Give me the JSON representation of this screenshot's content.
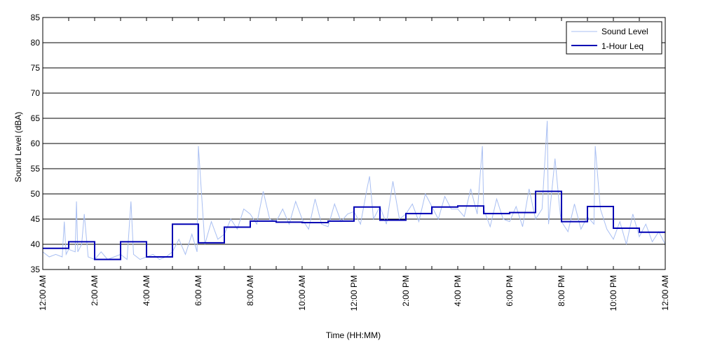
{
  "chart_data": {
    "type": "line",
    "title": "",
    "xlabel": "Time (HH:MM)",
    "ylabel": "Sound Level (dBA)",
    "xlim": [
      0,
      24
    ],
    "ylim": [
      35,
      85
    ],
    "yticks": [
      35,
      40,
      45,
      50,
      55,
      60,
      65,
      70,
      75,
      80,
      85
    ],
    "ytick_labels": [
      "35",
      "40",
      "45",
      "50",
      "55",
      "60",
      "65",
      "70",
      "75",
      "80",
      "85"
    ],
    "xticks": [
      0,
      2,
      4,
      6,
      8,
      10,
      12,
      14,
      16,
      18,
      20,
      22,
      24
    ],
    "xtick_labels": [
      "12:00 AM",
      "2:00 AM",
      "4:00 AM",
      "6:00 AM",
      "8:00 AM",
      "10:00 AM",
      "12:00 PM",
      "2:00 PM",
      "4:00 PM",
      "6:00 PM",
      "8:00 PM",
      "10:00 PM",
      "12:00 AM"
    ],
    "grid": "horizontal",
    "legend_position": "top-right",
    "series": [
      {
        "name": "Sound Level",
        "color": "#a9bff2",
        "style": "thin-line",
        "x": [
          0,
          0.25,
          0.5,
          0.75,
          0.83,
          0.9,
          1.0,
          1.25,
          1.3,
          1.35,
          1.5,
          1.6,
          1.75,
          2.0,
          2.25,
          2.5,
          2.75,
          3.0,
          3.25,
          3.4,
          3.5,
          3.75,
          4.0,
          4.25,
          4.5,
          4.75,
          5.0,
          5.25,
          5.5,
          5.75,
          5.95,
          6.0,
          6.25,
          6.5,
          6.75,
          7.0,
          7.25,
          7.5,
          7.75,
          8.0,
          8.25,
          8.5,
          8.75,
          9.0,
          9.25,
          9.5,
          9.75,
          10.0,
          10.25,
          10.5,
          10.75,
          11.0,
          11.25,
          11.5,
          11.75,
          12.0,
          12.25,
          12.5,
          12.6,
          12.75,
          13.0,
          13.25,
          13.5,
          13.75,
          14.0,
          14.25,
          14.5,
          14.75,
          15.0,
          15.25,
          15.5,
          15.75,
          16.0,
          16.25,
          16.5,
          16.75,
          16.95,
          17.0,
          17.25,
          17.5,
          17.75,
          18.0,
          18.25,
          18.5,
          18.75,
          19.0,
          19.25,
          19.45,
          19.5,
          19.75,
          19.95,
          20.0,
          20.25,
          20.5,
          20.75,
          21.0,
          21.25,
          21.3,
          21.5,
          21.75,
          22.0,
          22.25,
          22.5,
          22.75,
          23.0,
          23.25,
          23.5,
          23.75,
          24.0
        ],
        "y": [
          38.5,
          37.5,
          38.0,
          37.5,
          44.5,
          38.0,
          39.0,
          38.5,
          48.5,
          38.5,
          40.0,
          46.0,
          37.5,
          37.0,
          38.5,
          37.0,
          37.5,
          38.0,
          37.0,
          48.5,
          38.0,
          37.0,
          37.5,
          38.0,
          37.0,
          37.5,
          38.5,
          41.0,
          38.0,
          42.0,
          38.5,
          59.5,
          40.0,
          44.5,
          41.0,
          42.0,
          45.0,
          43.0,
          47.0,
          46.0,
          44.0,
          50.5,
          45.0,
          44.5,
          47.0,
          44.0,
          48.5,
          45.0,
          43.0,
          49.0,
          44.0,
          43.5,
          48.0,
          44.5,
          46.0,
          46.5,
          44.0,
          51.0,
          53.5,
          45.0,
          47.5,
          44.0,
          52.5,
          45.0,
          46.0,
          48.0,
          44.5,
          50.0,
          47.5,
          45.0,
          49.5,
          47.0,
          47.0,
          45.5,
          51.0,
          46.0,
          59.5,
          47.0,
          43.5,
          49.0,
          45.0,
          44.5,
          47.5,
          43.5,
          51.0,
          45.0,
          47.0,
          64.5,
          44.0,
          57.0,
          46.0,
          44.5,
          42.5,
          48.0,
          43.0,
          45.5,
          44.0,
          59.5,
          47.0,
          43.0,
          41.0,
          44.5,
          40.0,
          46.0,
          41.5,
          44.0,
          40.5,
          42.5,
          40.0
        ]
      },
      {
        "name": "1-Hour Leq",
        "color": "#0000b4",
        "style": "step",
        "x": [
          0,
          1,
          2,
          3,
          4,
          5,
          6,
          7,
          8,
          9,
          10,
          11,
          12,
          13,
          14,
          15,
          16,
          17,
          18,
          19,
          20,
          21,
          22,
          23,
          24
        ],
        "y": [
          39.2,
          40.5,
          37.0,
          40.5,
          37.5,
          44.0,
          40.3,
          43.4,
          44.6,
          44.4,
          44.3,
          44.6,
          47.4,
          44.8,
          46.1,
          47.4,
          47.6,
          46.1,
          46.3,
          50.5,
          44.5,
          47.5,
          43.2,
          42.4,
          42.4
        ]
      }
    ]
  }
}
